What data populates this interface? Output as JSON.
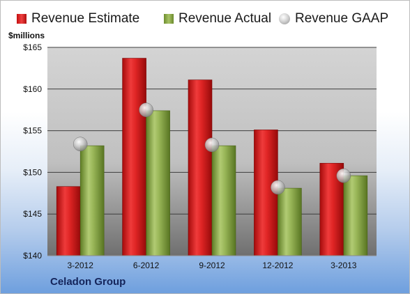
{
  "legend": {
    "estimate": "Revenue Estimate",
    "actual": "Revenue Actual",
    "gaap": "Revenue GAAP"
  },
  "unit_label": "$millions",
  "company": "Celadon Group",
  "colors": {
    "estimate": "#d8191a",
    "actual": "#8aa84a",
    "gaap": "#c8c8c8",
    "company_text": "#14245a"
  },
  "chart_data": {
    "type": "bar",
    "categories": [
      "3-2012",
      "6-2012",
      "9-2012",
      "12-2012",
      "3-2013"
    ],
    "series": [
      {
        "name": "Revenue Estimate",
        "values": [
          148.3,
          163.7,
          161.1,
          155.1,
          151.1
        ]
      },
      {
        "name": "Revenue Actual",
        "values": [
          153.2,
          157.4,
          153.2,
          148.1,
          149.6
        ]
      },
      {
        "name": "Revenue GAAP",
        "values": [
          153.4,
          157.5,
          153.3,
          148.2,
          149.6
        ]
      }
    ],
    "yticks": [
      "$140",
      "$145",
      "$150",
      "$155",
      "$160",
      "$165"
    ],
    "ylim": [
      140,
      165
    ],
    "ylabel": "$millions",
    "grid": true,
    "legend_position": "top"
  }
}
